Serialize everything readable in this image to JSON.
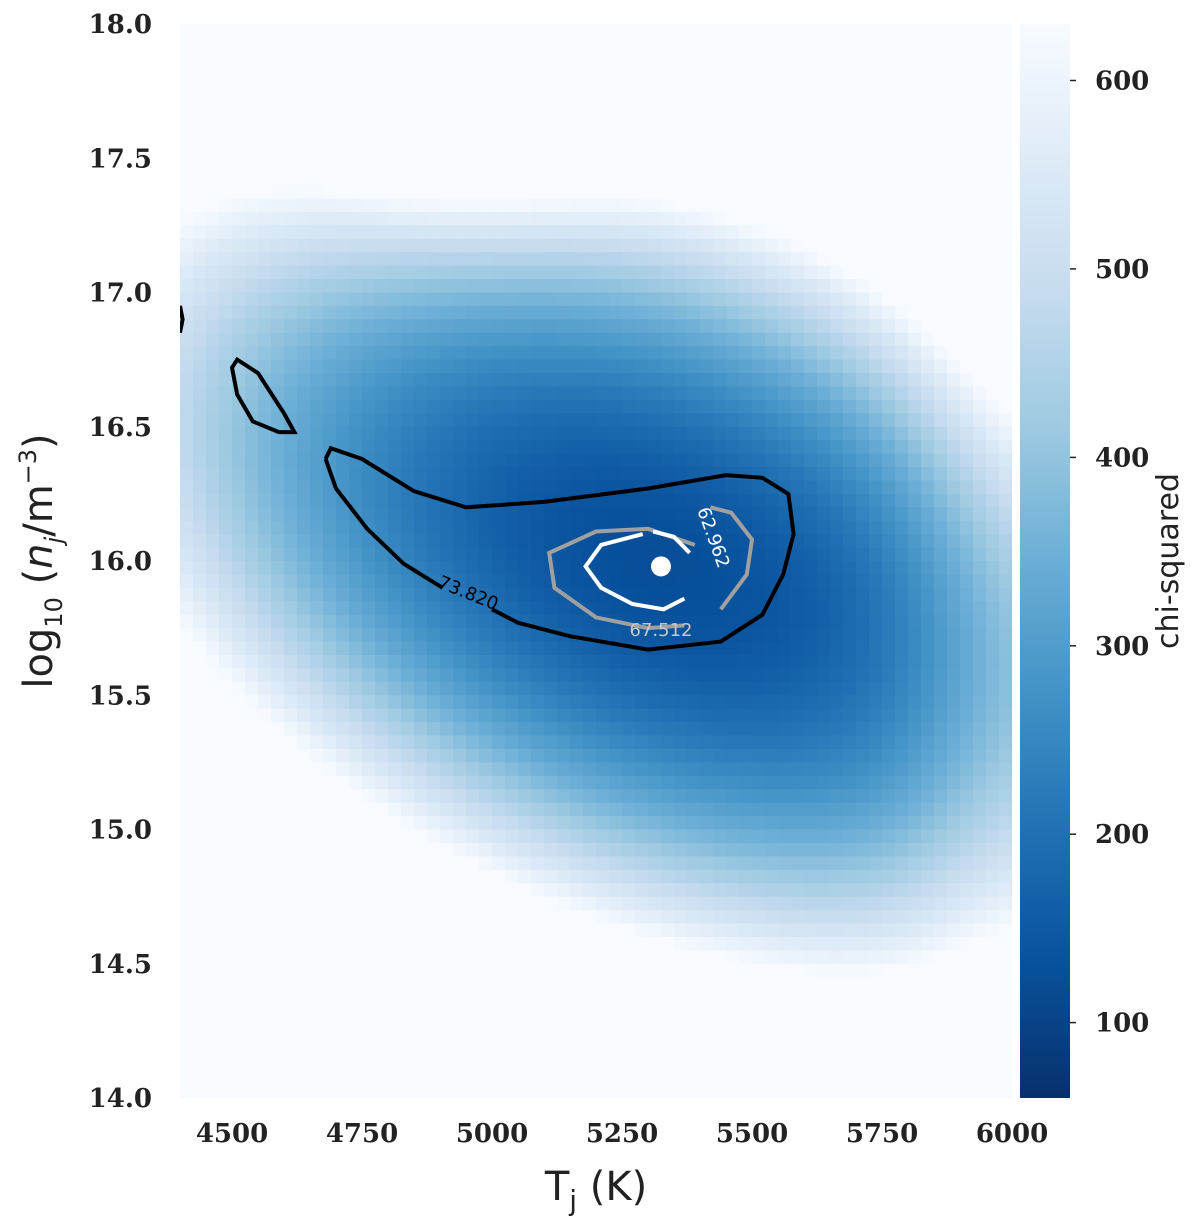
{
  "chart_data": {
    "type": "heatmap",
    "title": "",
    "xlabel": "T_j (K)",
    "ylabel": "log10(n_j / m^-3)",
    "xlim": [
      4400,
      6000
    ],
    "ylim": [
      14.0,
      18.0
    ],
    "x_ticks": [
      "4500",
      "4750",
      "5000",
      "5250",
      "5500",
      "5750",
      "6000"
    ],
    "y_ticks": [
      "14.0",
      "14.5",
      "15.0",
      "15.5",
      "16.0",
      "16.5",
      "17.0",
      "17.5",
      "18.0"
    ],
    "colorbar": {
      "label": "chi-squared",
      "range": [
        60,
        630
      ],
      "ticks": [
        "100",
        "200",
        "300",
        "400",
        "500",
        "600"
      ],
      "colormap": [
        "#08306b",
        "#08519c",
        "#2171b5",
        "#4292c6",
        "#6baed6",
        "#9ecae1",
        "#c6dbef",
        "#deebf7",
        "#f7fbff"
      ]
    },
    "best_fit": {
      "x": 5325,
      "y": 15.98,
      "color": "#ffffff"
    },
    "contours": [
      {
        "level": "62.962",
        "color": "#ffffff"
      },
      {
        "level": "67.512",
        "color": "#a0a0a0"
      },
      {
        "level": "73.820",
        "color": "#000000"
      }
    ]
  }
}
